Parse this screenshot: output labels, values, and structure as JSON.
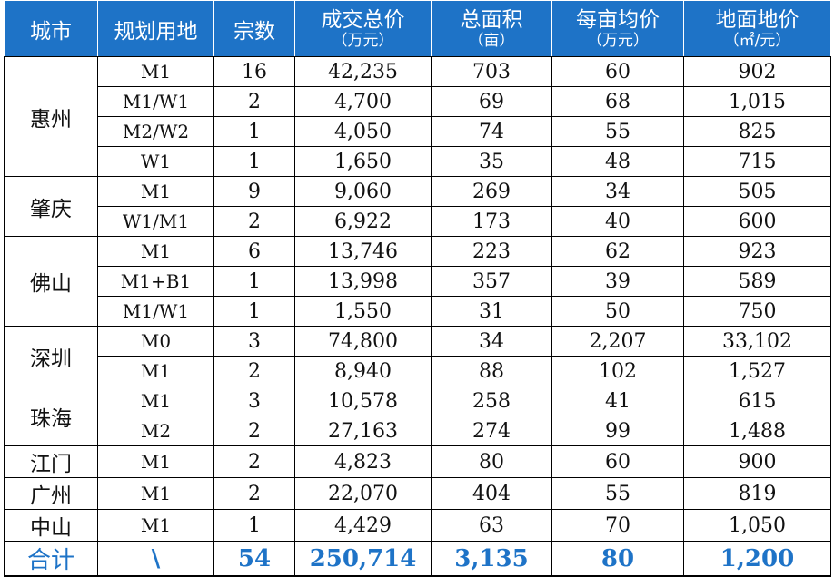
{
  "headers": [
    {
      "line1": "城市",
      "line2": ""
    },
    {
      "line1": "规划用地",
      "line2": ""
    },
    {
      "line1": "宗数",
      "line2": ""
    },
    {
      "line1": "成交总价",
      "line2": "（万元）"
    },
    {
      "line1": "总面积",
      "line2": "（亩）"
    },
    {
      "line1": "每亩均价",
      "line2": "（万元）"
    },
    {
      "line1": "地面地价",
      "line2": "（㎡/元）"
    }
  ],
  "rows": [
    {
      "city": "惠州",
      "use": "M1",
      "count": "16",
      "total_price": "42,235",
      "area": "703",
      "price_per_mu": "60",
      "land_price": "902"
    },
    {
      "city": "惠州",
      "use": "M1/W1",
      "count": "2",
      "total_price": "4,700",
      "area": "69",
      "price_per_mu": "68",
      "land_price": "1,015"
    },
    {
      "city": "惠州",
      "use": "M2/W2",
      "count": "1",
      "total_price": "4,050",
      "area": "74",
      "price_per_mu": "55",
      "land_price": "825"
    },
    {
      "city": "惠州",
      "use": "W1",
      "count": "1",
      "total_price": "1,650",
      "area": "35",
      "price_per_mu": "48",
      "land_price": "715"
    },
    {
      "city": "肇庆",
      "use": "M1",
      "count": "9",
      "total_price": "9,060",
      "area": "269",
      "price_per_mu": "34",
      "land_price": "505"
    },
    {
      "city": "肇庆",
      "use": "W1/M1",
      "count": "2",
      "total_price": "6,922",
      "area": "173",
      "price_per_mu": "40",
      "land_price": "600"
    },
    {
      "city": "佛山",
      "use": "M1",
      "count": "6",
      "total_price": "13,746",
      "area": "223",
      "price_per_mu": "62",
      "land_price": "923"
    },
    {
      "city": "佛山",
      "use": "M1+B1",
      "count": "1",
      "total_price": "13,998",
      "area": "357",
      "price_per_mu": "39",
      "land_price": "589"
    },
    {
      "city": "佛山",
      "use": "M1/W1",
      "count": "1",
      "total_price": "1,550",
      "area": "31",
      "price_per_mu": "50",
      "land_price": "750"
    },
    {
      "city": "深圳",
      "use": "M0",
      "count": "3",
      "total_price": "74,800",
      "area": "34",
      "price_per_mu": "2,207",
      "land_price": "33,102"
    },
    {
      "city": "深圳",
      "use": "M1",
      "count": "2",
      "total_price": "8,940",
      "area": "88",
      "price_per_mu": "102",
      "land_price": "1,527"
    },
    {
      "city": "珠海",
      "use": "M1",
      "count": "3",
      "total_price": "10,578",
      "area": "258",
      "price_per_mu": "41",
      "land_price": "615"
    },
    {
      "city": "珠海",
      "use": "M2",
      "count": "2",
      "total_price": "27,163",
      "area": "274",
      "price_per_mu": "99",
      "land_price": "1,488"
    },
    {
      "city": "江门",
      "use": "M1",
      "count": "2",
      "total_price": "4,823",
      "area": "80",
      "price_per_mu": "60",
      "land_price": "900"
    },
    {
      "city": "广州",
      "use": "M1",
      "count": "2",
      "total_price": "22,070",
      "area": "404",
      "price_per_mu": "55",
      "land_price": "819"
    },
    {
      "city": "中山",
      "use": "M1",
      "count": "1",
      "total_price": "4,429",
      "area": "63",
      "price_per_mu": "70",
      "land_price": "1,050"
    }
  ],
  "total": {
    "city": "合计",
    "use": "\\",
    "count": "54",
    "total_price": "250,714",
    "area": "3,135",
    "price_per_mu": "80",
    "land_price": "1,200"
  },
  "colors": {
    "header_bg": "#1e73c7",
    "header_text": "#ffffff",
    "total_text": "#1e73c7"
  }
}
